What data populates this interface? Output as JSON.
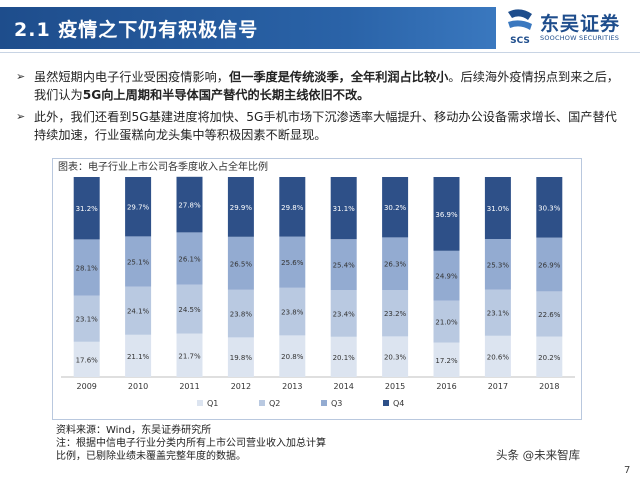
{
  "header": {
    "title": "2.1 疫情之下仍有积极信号",
    "logo_cn": "东吴证券",
    "logo_en": "SOOCHOW SECURITIES",
    "logo_mark_text": "SCS"
  },
  "bullets": [
    {
      "parts": [
        {
          "text": "虽然短期内电子行业受困疫情影响，",
          "bold": false
        },
        {
          "text": "但一季度是传统淡季，全年利润占比较小",
          "bold": true
        },
        {
          "text": "。后续海外疫情拐点到来之后，我们认为",
          "bold": false
        },
        {
          "text": "5G向上周期和半导体国产替代的长期主线依旧不改。",
          "bold": true
        }
      ]
    },
    {
      "parts": [
        {
          "text": "此外，我们还看到5G基建进度将加快、5G手机市场下沉渗透率大幅提升、移动办公设备需求增长、国产替代持续加速，行业蛋糕向龙头集中等积极因素不断显现。",
          "bold": false
        }
      ]
    }
  ],
  "chart_caption": "图表：电子行业上市公司各季度收入占全年比例",
  "notes": {
    "line1": "资料来源：Wind，东吴证券研究所",
    "line2": "注：根据中信电子行业分类内所有上市公司营业收入加总计算",
    "line3": "比例，已剔除业绩未覆盖完整年度的数据。"
  },
  "watermark": "头条 @未来智库",
  "page_number": "7",
  "chart_data": {
    "type": "bar",
    "stacked": true,
    "title": "电子行业上市公司各季度收入占全年比例",
    "categories": [
      "2009",
      "2010",
      "2011",
      "2012",
      "2013",
      "2014",
      "2015",
      "2016",
      "2017",
      "2018"
    ],
    "series": [
      {
        "name": "Q1",
        "color": "#dce4f0",
        "values": [
          17.6,
          21.1,
          21.7,
          19.8,
          20.8,
          20.1,
          20.3,
          17.2,
          20.6,
          20.2
        ],
        "labels": [
          "17.6%",
          "21.1%",
          "21.7%",
          "19.8%",
          "20.8%",
          "20.1%",
          "20.3%",
          "17.2%",
          "20.6%",
          "20.2%"
        ]
      },
      {
        "name": "Q2",
        "color": "#b9c9e1",
        "values": [
          23.1,
          24.1,
          24.5,
          23.8,
          23.8,
          23.4,
          23.2,
          21.0,
          23.1,
          22.6
        ],
        "labels": [
          "23.1%",
          "24.1%",
          "24.5%",
          "23.8%",
          "23.8%",
          "23.4%",
          "23.2%",
          "21.0%",
          "23.1%",
          "22.6%"
        ]
      },
      {
        "name": "Q3",
        "color": "#93abd1",
        "values": [
          28.1,
          25.1,
          26.1,
          26.5,
          25.6,
          25.4,
          26.3,
          24.9,
          25.3,
          26.9
        ],
        "labels": [
          "28.1%",
          "25.1%",
          "26.1%",
          "26.5%",
          "25.6%",
          "25.4%",
          "26.3%",
          "24.9%",
          "25.3%",
          "26.9%"
        ]
      },
      {
        "name": "Q4",
        "color": "#2e5088",
        "values": [
          31.2,
          29.7,
          27.8,
          29.9,
          29.8,
          31.1,
          30.2,
          36.9,
          31.0,
          30.3
        ],
        "labels": [
          "31.2%",
          "29.7%",
          "27.8%",
          "29.9%",
          "29.8%",
          "31.1%",
          "30.2%",
          "36.9%",
          "31.0%",
          "30.3%"
        ]
      }
    ],
    "ylim": [
      0,
      100
    ],
    "legend": "bottom",
    "xlabel": "",
    "ylabel": ""
  }
}
